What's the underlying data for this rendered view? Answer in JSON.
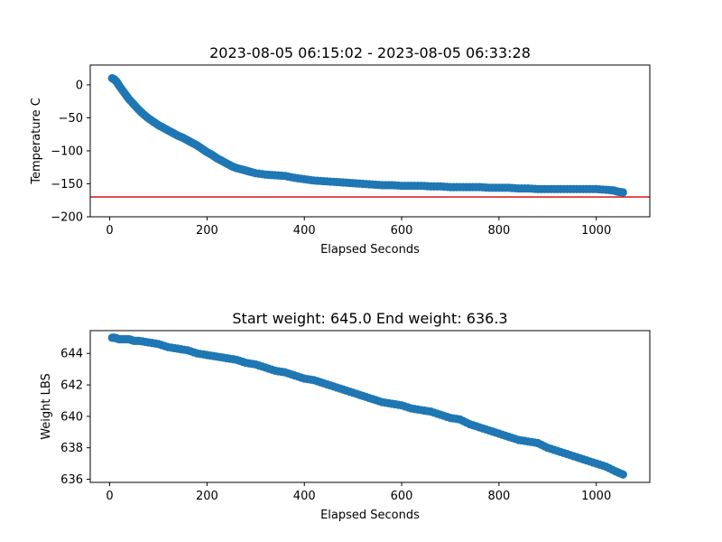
{
  "chart_data": [
    {
      "type": "scatter",
      "title": "2023-08-05 06:15:02 - 2023-08-05 06:33:28",
      "xlabel": "Elapsed Seconds",
      "ylabel": "Temperature C",
      "xlim": [
        -40,
        1110
      ],
      "ylim": [
        -200,
        30
      ],
      "xticks": [
        0,
        200,
        400,
        600,
        800,
        1000
      ],
      "yticks": [
        0,
        -50,
        -100,
        -150,
        -200
      ],
      "reference_line": {
        "y": -170,
        "color": "#d62728"
      },
      "series": [
        {
          "color": "#1f77b4",
          "x": [
            5,
            10,
            15,
            20,
            30,
            40,
            50,
            60,
            70,
            80,
            90,
            100,
            110,
            120,
            130,
            140,
            150,
            160,
            170,
            180,
            190,
            200,
            210,
            220,
            230,
            240,
            250,
            260,
            270,
            280,
            290,
            300,
            320,
            340,
            360,
            380,
            400,
            420,
            440,
            460,
            480,
            500,
            520,
            540,
            560,
            580,
            600,
            620,
            640,
            660,
            680,
            700,
            720,
            740,
            760,
            780,
            800,
            820,
            840,
            860,
            880,
            900,
            920,
            940,
            960,
            980,
            1000,
            1020,
            1035,
            1045,
            1055
          ],
          "y": [
            10,
            8,
            4,
            -2,
            -12,
            -22,
            -30,
            -38,
            -45,
            -51,
            -56,
            -61,
            -65,
            -69,
            -73,
            -77,
            -80,
            -84,
            -88,
            -92,
            -97,
            -102,
            -106,
            -111,
            -115,
            -119,
            -123,
            -126,
            -128,
            -130,
            -132,
            -134,
            -136,
            -137,
            -138,
            -141,
            -143,
            -145,
            -146,
            -147,
            -148,
            -149,
            -150,
            -151,
            -152,
            -152,
            -153,
            -153,
            -153,
            -154,
            -154,
            -155,
            -155,
            -155,
            -155,
            -156,
            -156,
            -156,
            -157,
            -157,
            -158,
            -158,
            -158,
            -158,
            -158,
            -158,
            -158,
            -159,
            -160,
            -162,
            -163
          ]
        }
      ]
    },
    {
      "type": "scatter",
      "title": "Start weight: 645.0 End weight: 636.3",
      "xlabel": "Elapsed Seconds",
      "ylabel": "Weight LBS",
      "xlim": [
        -40,
        1110
      ],
      "ylim": [
        635.8,
        645.45
      ],
      "xticks": [
        0,
        200,
        400,
        600,
        800,
        1000
      ],
      "yticks": [
        636,
        638,
        640,
        642,
        644
      ],
      "series": [
        {
          "color": "#1f77b4",
          "x": [
            5,
            10,
            20,
            30,
            40,
            50,
            60,
            80,
            100,
            120,
            140,
            160,
            180,
            200,
            220,
            240,
            260,
            280,
            300,
            320,
            340,
            360,
            380,
            400,
            420,
            440,
            460,
            480,
            500,
            520,
            540,
            560,
            580,
            600,
            620,
            640,
            660,
            680,
            700,
            720,
            740,
            760,
            780,
            800,
            820,
            840,
            860,
            880,
            900,
            920,
            940,
            960,
            980,
            1000,
            1020,
            1040,
            1055
          ],
          "y": [
            645.0,
            645.0,
            644.9,
            644.9,
            644.9,
            644.8,
            644.8,
            644.7,
            644.6,
            644.4,
            644.3,
            644.2,
            644.0,
            643.9,
            643.8,
            643.7,
            643.6,
            643.4,
            643.3,
            643.1,
            642.9,
            642.8,
            642.6,
            642.4,
            642.3,
            642.1,
            641.9,
            641.7,
            641.5,
            641.3,
            641.1,
            640.9,
            640.8,
            640.7,
            640.5,
            640.4,
            640.3,
            640.1,
            639.9,
            639.8,
            639.5,
            639.3,
            639.1,
            638.9,
            638.7,
            638.5,
            638.4,
            638.3,
            638.0,
            637.8,
            637.6,
            637.4,
            637.2,
            637.0,
            636.8,
            636.5,
            636.3
          ]
        }
      ]
    }
  ]
}
